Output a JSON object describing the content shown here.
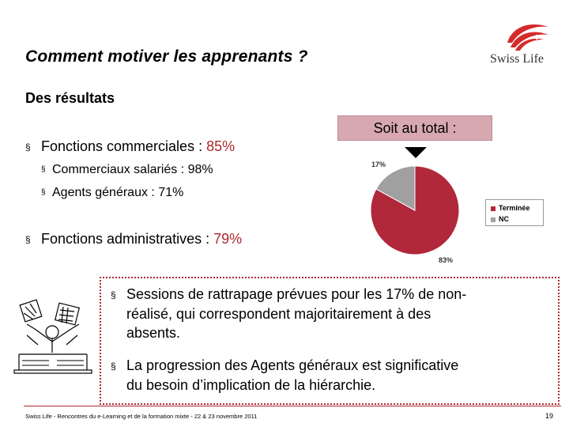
{
  "slide": {
    "title": "Comment motiver les apprenants ?",
    "subtitle": "Des résultats",
    "logo_text": "Swiss Life",
    "bullet_mark": "§",
    "bullets": [
      {
        "label": "Fonctions commerciales : ",
        "value": "85%"
      },
      {
        "label": "Fonctions administratives : ",
        "value": "79%"
      }
    ],
    "sub_bullets": [
      "Commerciaux salariés : 98%",
      "Agents généraux : 71%"
    ],
    "total_box": "Soit au total :",
    "notes": [
      {
        "lines": [
          "Sessions de rattrapage prévues pour les 17% de non-",
          "réalisé, qui correspondent majoritairement à des",
          "absents."
        ]
      },
      {
        "lines": [
          "La progression des Agents généraux est significative",
          "du besoin d’implication de la hiérarchie."
        ]
      }
    ],
    "footer": "Swiss Life - Rencontres du e-Learning et de la formation mixte - 22 & 23 novembre 2011",
    "page_number": "19"
  },
  "chart_data": {
    "type": "pie",
    "slices": [
      {
        "name": "Terminée",
        "value": 83,
        "label": "83%",
        "color": "#b0283a"
      },
      {
        "name": "NC",
        "value": 17,
        "label": "17%",
        "color": "#a0a0a0"
      }
    ],
    "legend_position": "right"
  }
}
